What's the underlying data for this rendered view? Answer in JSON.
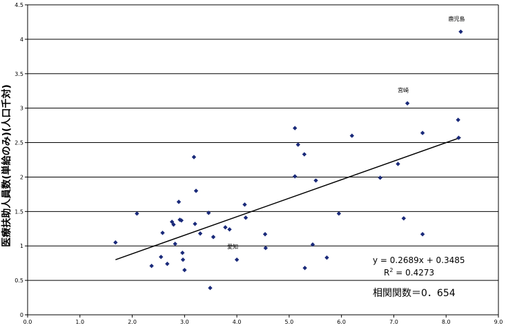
{
  "chart_data": {
    "type": "scatter",
    "ylabel": "医療扶助人員数(単給のみ)(人口千対)",
    "xlim": [
      0,
      9
    ],
    "ylim": [
      0,
      4.5
    ],
    "x_ticks": [
      "0.0",
      "1.0",
      "2.0",
      "3.0",
      "4.0",
      "5.0",
      "6.0",
      "7.0",
      "8.0",
      "9.0"
    ],
    "y_ticks": [
      "0",
      "0.5",
      "1",
      "1.5",
      "2",
      "2.5",
      "3",
      "3.5",
      "4",
      "4.5"
    ],
    "grid": "horizontal",
    "marker_color": "#1a2a7a",
    "points": [
      {
        "x": 1.68,
        "y": 1.05
      },
      {
        "x": 2.09,
        "y": 1.47
      },
      {
        "x": 2.37,
        "y": 0.71
      },
      {
        "x": 2.55,
        "y": 0.84
      },
      {
        "x": 2.58,
        "y": 1.19
      },
      {
        "x": 2.67,
        "y": 0.74
      },
      {
        "x": 2.76,
        "y": 1.35
      },
      {
        "x": 2.79,
        "y": 1.31
      },
      {
        "x": 2.82,
        "y": 1.03
      },
      {
        "x": 2.89,
        "y": 1.64
      },
      {
        "x": 2.91,
        "y": 1.38
      },
      {
        "x": 2.94,
        "y": 1.37
      },
      {
        "x": 2.96,
        "y": 0.9
      },
      {
        "x": 2.97,
        "y": 0.8
      },
      {
        "x": 3.0,
        "y": 0.65
      },
      {
        "x": 3.18,
        "y": 2.29
      },
      {
        "x": 3.2,
        "y": 1.32
      },
      {
        "x": 3.22,
        "y": 1.8
      },
      {
        "x": 3.3,
        "y": 1.18
      },
      {
        "x": 3.46,
        "y": 1.48
      },
      {
        "x": 3.49,
        "y": 0.39
      },
      {
        "x": 3.55,
        "y": 1.13
      },
      {
        "x": 3.78,
        "y": 1.27
      },
      {
        "x": 3.86,
        "y": 1.24
      },
      {
        "x": 4.0,
        "y": 0.8
      },
      {
        "x": 4.15,
        "y": 1.6
      },
      {
        "x": 4.17,
        "y": 1.41
      },
      {
        "x": 4.54,
        "y": 1.17
      },
      {
        "x": 4.55,
        "y": 0.97
      },
      {
        "x": 5.11,
        "y": 2.71
      },
      {
        "x": 5.11,
        "y": 2.01
      },
      {
        "x": 5.17,
        "y": 2.47
      },
      {
        "x": 5.29,
        "y": 2.33
      },
      {
        "x": 5.3,
        "y": 0.68
      },
      {
        "x": 5.45,
        "y": 1.02
      },
      {
        "x": 5.51,
        "y": 1.95
      },
      {
        "x": 5.72,
        "y": 0.83
      },
      {
        "x": 5.95,
        "y": 1.47
      },
      {
        "x": 6.2,
        "y": 2.6
      },
      {
        "x": 6.74,
        "y": 1.99
      },
      {
        "x": 7.08,
        "y": 2.19
      },
      {
        "x": 7.19,
        "y": 1.4
      },
      {
        "x": 7.26,
        "y": 3.07
      },
      {
        "x": 7.55,
        "y": 2.64
      },
      {
        "x": 7.55,
        "y": 1.17
      },
      {
        "x": 8.23,
        "y": 2.83
      },
      {
        "x": 8.24,
        "y": 2.57
      },
      {
        "x": 8.28,
        "y": 4.11
      }
    ],
    "point_labels": [
      {
        "text": "鹿児島",
        "x": 8.28,
        "y": 4.11
      },
      {
        "text": "宮崎",
        "x": 7.26,
        "y": 3.07
      },
      {
        "text": "愛知",
        "x": 4.0,
        "y": 0.8
      }
    ],
    "trendline": {
      "slope": 0.2689,
      "intercept": 0.3485,
      "x_start": 1.68,
      "x_end": 8.28
    },
    "equation_text": "y = 0.2689x + 0.3485",
    "r2_prefix": "R",
    "r2_sup": "2",
    "r2_suffix": " = 0.4273",
    "correlation_text": "相関関数＝0．654"
  }
}
